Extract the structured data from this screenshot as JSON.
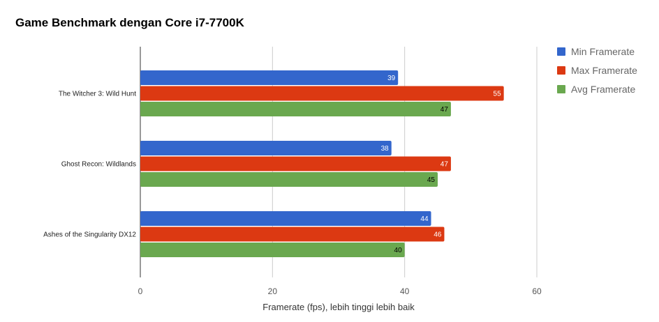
{
  "chart_data": {
    "type": "bar",
    "orientation": "horizontal",
    "title": "Game Benchmark dengan Core i7-7700K",
    "categories": [
      "The Witcher 3: Wild Hunt",
      "Ghost Recon: Wildlands",
      "Ashes of the Singularity DX12"
    ],
    "series": [
      {
        "name": "Min Framerate",
        "color": "#3366cc",
        "label_color": "#ffffff",
        "values": [
          39,
          38,
          44
        ]
      },
      {
        "name": "Max Framerate",
        "color": "#dc3912",
        "label_color": "#ffffff",
        "values": [
          55,
          47,
          46
        ]
      },
      {
        "name": "Avg Framerate",
        "color": "#6aa84f",
        "label_color": "#000000",
        "values": [
          47,
          45,
          40
        ]
      }
    ],
    "xlabel": "Framerate (fps), lebih tinggi lebih baik",
    "ylabel": "",
    "xlim": [
      0,
      60
    ],
    "ticks": [
      "0",
      "20",
      "40",
      "60"
    ],
    "grid": true,
    "legend_position": "right"
  }
}
